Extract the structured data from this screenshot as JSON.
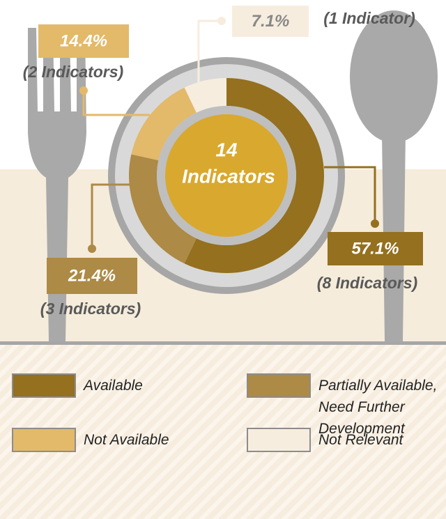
{
  "chart_data": {
    "type": "donut",
    "center_label": [
      "14",
      "Indicators"
    ],
    "categories": [
      "Available",
      "Partially Available, Need Further Development",
      "Not Available",
      "Not Relevant"
    ],
    "values": [
      57.1,
      21.4,
      14.4,
      7.1
    ],
    "value_labels": [
      "57.1%",
      "21.4%",
      "14.4%",
      "7.1%"
    ],
    "count_labels": [
      "(8 Indicators)",
      "(3 Indicators)",
      "(2 Indicators)",
      "(1 Indicator)"
    ],
    "colors": [
      "#94701f",
      "#ad8a45",
      "#e3b96a",
      "#f7eddf"
    ]
  }
}
